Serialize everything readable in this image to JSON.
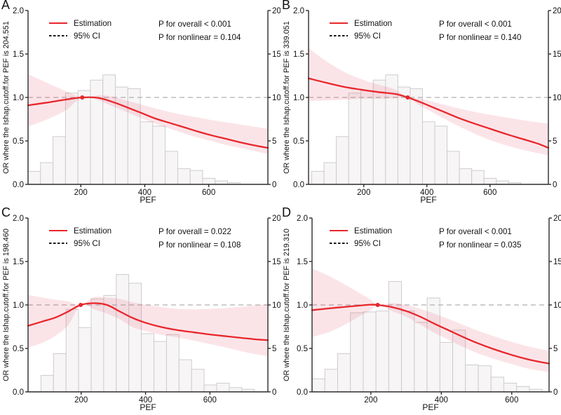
{
  "figure": {
    "legend": {
      "estimation": "Estimation",
      "ci": "95% CI"
    },
    "x_axis_label": "PEF",
    "left_y_ticks": [
      "0.0",
      "0.5",
      "1.0",
      "1.5",
      "2.0"
    ],
    "right_y_ticks": [
      "0",
      "5",
      "10",
      "15",
      "20"
    ],
    "x_tick_values": [
      200,
      400,
      600
    ],
    "colors": {
      "estimation_line": "#e8272c",
      "ci_band": "rgba(224,62,94,0.14)",
      "histogram_fill": "#f7f5f6",
      "histogram_border": "#c9c9c9",
      "reference_line": "#b0b0b0",
      "axis": "#2b2b2b"
    }
  },
  "chart_data": [
    {
      "type": "line",
      "panel": "A",
      "ylabel": "OR where the Ishap.cutoff.for PEF is 204.551",
      "xlabel": "PEF",
      "cutoff": 204.551,
      "reference_or": 1.0,
      "p_overall": "P for overall < 0.001",
      "p_nonlinear": "P for nonlinear = 0.104",
      "ylim_left": [
        0,
        2
      ],
      "ylim_right": [
        0,
        20
      ],
      "x_range": [
        35,
        785
      ],
      "histogram": {
        "bin_start": 35,
        "bin_width": 39,
        "heights": [
          0.15,
          0.25,
          0.55,
          1.05,
          1.08,
          1.2,
          1.26,
          1.12,
          1.1,
          0.72,
          0.67,
          0.38,
          0.18,
          0.16,
          0.07,
          0.04,
          0.02
        ]
      },
      "curve": [
        [
          35,
          0.91,
          0.665,
          1.27
        ],
        [
          93,
          0.94,
          0.745,
          1.17
        ],
        [
          152,
          0.975,
          0.85,
          1.075
        ],
        [
          204.551,
          1.0,
          1.0,
          1.0
        ],
        [
          254,
          0.995,
          0.97,
          1.025
        ],
        [
          298,
          0.95,
          0.9,
          1.01
        ],
        [
          342,
          0.89,
          0.835,
          0.965
        ],
        [
          387,
          0.825,
          0.765,
          0.92
        ],
        [
          431,
          0.76,
          0.7,
          0.875
        ],
        [
          475,
          0.71,
          0.645,
          0.835
        ],
        [
          520,
          0.66,
          0.59,
          0.8
        ],
        [
          564,
          0.61,
          0.54,
          0.77
        ],
        [
          608,
          0.565,
          0.5,
          0.74
        ],
        [
          653,
          0.525,
          0.455,
          0.715
        ],
        [
          697,
          0.485,
          0.42,
          0.69
        ],
        [
          741,
          0.45,
          0.385,
          0.665
        ],
        [
          785,
          0.42,
          0.35,
          0.64
        ]
      ]
    },
    {
      "type": "line",
      "panel": "B",
      "ylabel": "OR where the Ishap.cutoff.for PEF is 339.051",
      "xlabel": "PEF",
      "cutoff": 339.051,
      "reference_or": 1.0,
      "p_overall": "P for overall < 0.001",
      "p_nonlinear": "P for nonlinear = 0.140",
      "ylim_left": [
        0,
        2
      ],
      "ylim_right": [
        0,
        20
      ],
      "x_range": [
        25,
        785
      ],
      "histogram": {
        "bin_start": 35,
        "bin_width": 39,
        "heights": [
          0.15,
          0.25,
          0.55,
          1.05,
          1.08,
          1.2,
          1.26,
          1.12,
          1.1,
          0.72,
          0.67,
          0.38,
          0.18,
          0.16,
          0.07,
          0.04,
          0.02
        ]
      },
      "curve": [
        [
          25,
          1.22,
          0.96,
          1.57
        ],
        [
          80,
          1.17,
          0.965,
          1.42
        ],
        [
          140,
          1.12,
          0.975,
          1.29
        ],
        [
          200,
          1.085,
          0.985,
          1.2
        ],
        [
          250,
          1.06,
          0.985,
          1.145
        ],
        [
          300,
          1.04,
          0.99,
          1.09
        ],
        [
          339.051,
          1.0,
          1.0,
          1.0
        ],
        [
          380,
          0.945,
          0.9,
          0.985
        ],
        [
          420,
          0.885,
          0.825,
          0.95
        ],
        [
          460,
          0.825,
          0.745,
          0.91
        ],
        [
          500,
          0.765,
          0.67,
          0.875
        ],
        [
          550,
          0.7,
          0.585,
          0.835
        ],
        [
          600,
          0.64,
          0.51,
          0.8
        ],
        [
          650,
          0.58,
          0.45,
          0.77
        ],
        [
          700,
          0.525,
          0.4,
          0.74
        ],
        [
          750,
          0.47,
          0.36,
          0.715
        ],
        [
          785,
          0.42,
          0.335,
          0.7
        ]
      ]
    },
    {
      "type": "line",
      "panel": "C",
      "ylabel": "OR where the Ishap.cutoff.for PEF is 198.460",
      "xlabel": "PEF",
      "cutoff": 198.46,
      "reference_or": 1.0,
      "p_overall": "P for overall = 0.022",
      "p_nonlinear": "P for nonlinear = 0.108",
      "ylim_left": [
        0,
        2
      ],
      "ylim_right": [
        0,
        20
      ],
      "x_range": [
        35,
        780
      ],
      "histogram": {
        "bin_start": 75,
        "bin_width": 39,
        "heights": [
          0.19,
          0.44,
          0.95,
          0.74,
          1.07,
          1.11,
          1.35,
          1.25,
          0.67,
          0.58,
          0.66,
          0.37,
          0.26,
          0.08,
          0.1,
          0.05,
          0.03
        ]
      },
      "curve": [
        [
          35,
          0.76,
          0.51,
          1.115
        ],
        [
          80,
          0.81,
          0.565,
          1.085
        ],
        [
          120,
          0.855,
          0.645,
          1.06
        ],
        [
          160,
          0.925,
          0.77,
          1.04
        ],
        [
          198.46,
          1.0,
          1.0,
          1.0
        ],
        [
          240,
          1.02,
          0.95,
          1.09
        ],
        [
          280,
          1.0,
          0.9,
          1.085
        ],
        [
          320,
          0.925,
          0.835,
          1.07
        ],
        [
          360,
          0.85,
          0.745,
          1.03
        ],
        [
          400,
          0.795,
          0.7,
          1.005
        ],
        [
          450,
          0.745,
          0.655,
          0.975
        ],
        [
          500,
          0.71,
          0.625,
          0.955
        ],
        [
          550,
          0.685,
          0.59,
          0.95
        ],
        [
          600,
          0.66,
          0.55,
          0.955
        ],
        [
          650,
          0.64,
          0.51,
          0.965
        ],
        [
          700,
          0.62,
          0.465,
          0.98
        ],
        [
          740,
          0.605,
          0.435,
          0.995
        ],
        [
          780,
          0.595,
          0.41,
          1.01
        ]
      ]
    },
    {
      "type": "line",
      "panel": "D",
      "ylabel": "OR where the Ishap.cutoff.for PEF is 219.310",
      "xlabel": "PEF",
      "cutoff": 219.31,
      "reference_or": 1.0,
      "p_overall": "P for overall < 0.001",
      "p_nonlinear": "P for nonlinear = 0.035",
      "ylim_left": [
        0,
        2
      ],
      "ylim_right": [
        0,
        20
      ],
      "x_range": [
        33,
        706
      ],
      "histogram": {
        "bin_start": 33,
        "bin_width": 36.3,
        "heights": [
          0.15,
          0.26,
          0.44,
          0.91,
          0.92,
          0.93,
          1.27,
          0.93,
          0.8,
          1.08,
          0.57,
          0.71,
          0.31,
          0.3,
          0.17,
          0.1,
          0.06,
          0.03
        ]
      },
      "curve": [
        [
          33,
          0.94,
          0.63,
          1.42
        ],
        [
          80,
          0.96,
          0.685,
          1.335
        ],
        [
          120,
          0.975,
          0.76,
          1.25
        ],
        [
          160,
          0.99,
          0.85,
          1.155
        ],
        [
          200,
          1.003,
          0.945,
          1.06
        ],
        [
          219.31,
          1.0,
          1.0,
          1.0
        ],
        [
          260,
          0.975,
          0.93,
          1.02
        ],
        [
          300,
          0.93,
          0.865,
          1.0
        ],
        [
          340,
          0.865,
          0.775,
          0.955
        ],
        [
          380,
          0.785,
          0.68,
          0.9
        ],
        [
          420,
          0.71,
          0.6,
          0.84
        ],
        [
          460,
          0.635,
          0.52,
          0.775
        ],
        [
          500,
          0.565,
          0.45,
          0.71
        ],
        [
          550,
          0.49,
          0.38,
          0.64
        ],
        [
          600,
          0.425,
          0.32,
          0.575
        ],
        [
          650,
          0.37,
          0.265,
          0.52
        ],
        [
          706,
          0.325,
          0.225,
          0.47
        ]
      ]
    }
  ]
}
